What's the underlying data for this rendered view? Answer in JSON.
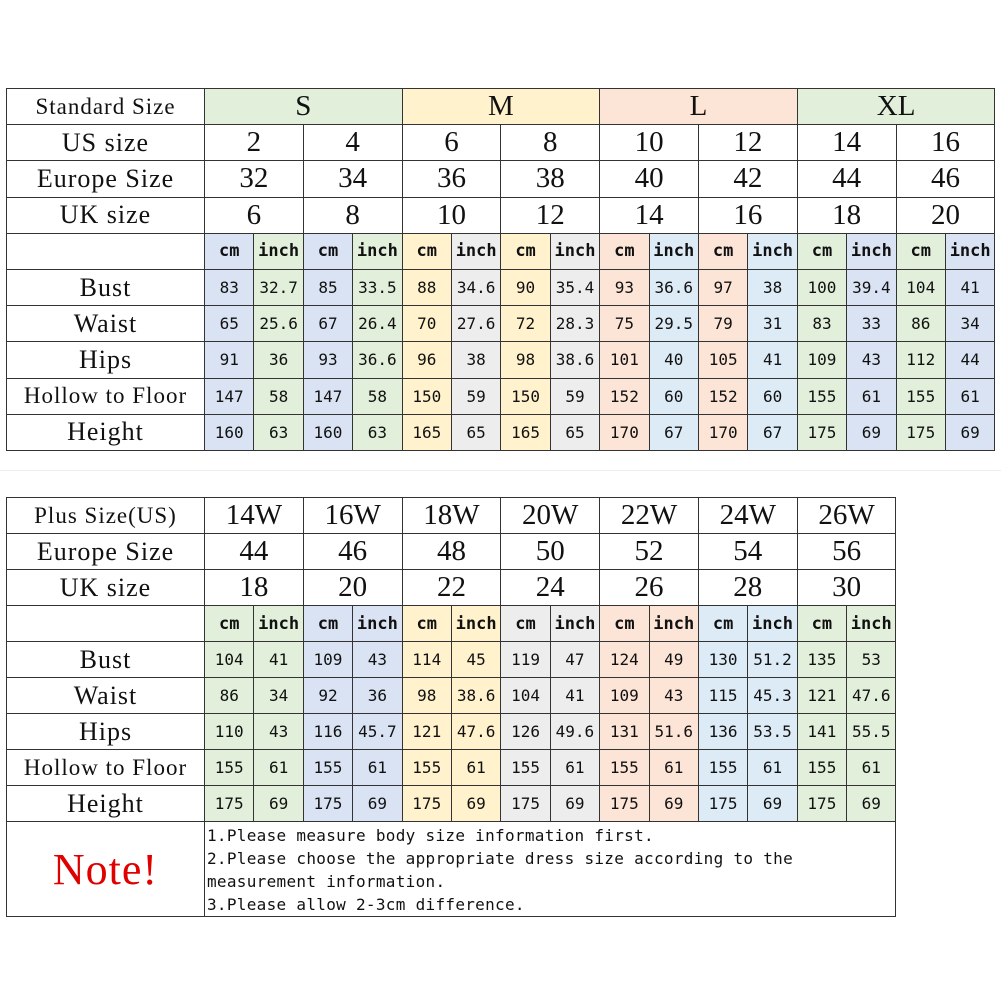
{
  "colors": {
    "green": "#e2efda",
    "blue": "#dae3f3",
    "yellow": "#fff2cc",
    "gray": "#ededed",
    "peach": "#fce4d6",
    "lightblue": "#ddebf7",
    "note_red": "#e00000"
  },
  "standard": {
    "header_label": "Standard Size",
    "groups": [
      {
        "label": "S",
        "color": "green",
        "cm_color": "blue",
        "inch_color": "green"
      },
      {
        "label": "M",
        "color": "yellow",
        "cm_color": "yellow",
        "inch_color": "gray"
      },
      {
        "label": "L",
        "color": "peach",
        "cm_color": "peach",
        "inch_color": "lightblue"
      },
      {
        "label": "XL",
        "color": "green",
        "cm_color": "green",
        "inch_color": "blue"
      }
    ],
    "size_rows": [
      {
        "label": "US size",
        "values": [
          "2",
          "4",
          "6",
          "8",
          "10",
          "12",
          "14",
          "16"
        ]
      },
      {
        "label": "Europe Size",
        "values": [
          "32",
          "34",
          "36",
          "38",
          "40",
          "42",
          "44",
          "46"
        ]
      },
      {
        "label": "UK size",
        "values": [
          "6",
          "8",
          "10",
          "12",
          "14",
          "16",
          "18",
          "20"
        ]
      }
    ],
    "unit_labels": {
      "cm": "cm",
      "inch": "inch"
    },
    "measure_rows": [
      {
        "label": "Bust",
        "values": [
          "83",
          "32.7",
          "85",
          "33.5",
          "88",
          "34.6",
          "90",
          "35.4",
          "93",
          "36.6",
          "97",
          "38",
          "100",
          "39.4",
          "104",
          "41"
        ]
      },
      {
        "label": "Waist",
        "values": [
          "65",
          "25.6",
          "67",
          "26.4",
          "70",
          "27.6",
          "72",
          "28.3",
          "75",
          "29.5",
          "79",
          "31",
          "83",
          "33",
          "86",
          "34"
        ]
      },
      {
        "label": "Hips",
        "values": [
          "91",
          "36",
          "93",
          "36.6",
          "96",
          "38",
          "98",
          "38.6",
          "101",
          "40",
          "105",
          "41",
          "109",
          "43",
          "112",
          "44"
        ]
      },
      {
        "label": "Hollow to Floor",
        "values": [
          "147",
          "58",
          "147",
          "58",
          "150",
          "59",
          "150",
          "59",
          "152",
          "60",
          "152",
          "60",
          "155",
          "61",
          "155",
          "61"
        ]
      },
      {
        "label": "Height",
        "values": [
          "160",
          "63",
          "160",
          "63",
          "165",
          "65",
          "165",
          "65",
          "170",
          "67",
          "170",
          "67",
          "175",
          "69",
          "175",
          "69"
        ]
      }
    ]
  },
  "plus": {
    "size_rows": [
      {
        "label": "Plus Size(US)",
        "values": [
          "14W",
          "16W",
          "18W",
          "20W",
          "22W",
          "24W",
          "26W"
        ]
      },
      {
        "label": "Europe Size",
        "values": [
          "44",
          "46",
          "48",
          "50",
          "52",
          "54",
          "56"
        ]
      },
      {
        "label": "UK size",
        "values": [
          "18",
          "20",
          "22",
          "24",
          "26",
          "28",
          "30"
        ]
      }
    ],
    "column_colors": [
      "green",
      "blue",
      "yellow",
      "gray",
      "peach",
      "lightblue",
      "green"
    ],
    "unit_labels": {
      "cm": "cm",
      "inch": "inch"
    },
    "measure_rows": [
      {
        "label": "Bust",
        "values": [
          "104",
          "41",
          "109",
          "43",
          "114",
          "45",
          "119",
          "47",
          "124",
          "49",
          "130",
          "51.2",
          "135",
          "53"
        ]
      },
      {
        "label": "Waist",
        "values": [
          "86",
          "34",
          "92",
          "36",
          "98",
          "38.6",
          "104",
          "41",
          "109",
          "43",
          "115",
          "45.3",
          "121",
          "47.6"
        ]
      },
      {
        "label": "Hips",
        "values": [
          "110",
          "43",
          "116",
          "45.7",
          "121",
          "47.6",
          "126",
          "49.6",
          "131",
          "51.6",
          "136",
          "53.5",
          "141",
          "55.5"
        ]
      },
      {
        "label": "Hollow to Floor",
        "values": [
          "155",
          "61",
          "155",
          "61",
          "155",
          "61",
          "155",
          "61",
          "155",
          "61",
          "155",
          "61",
          "155",
          "61"
        ]
      },
      {
        "label": "Height",
        "values": [
          "175",
          "69",
          "175",
          "69",
          "175",
          "69",
          "175",
          "69",
          "175",
          "69",
          "175",
          "69",
          "175",
          "69"
        ]
      }
    ],
    "note": {
      "title": "Note!",
      "lines": [
        "1.Please measure body size information first.",
        "2.Please choose the appropriate dress size according to the measurement information.",
        "3.Please allow 2-3cm difference."
      ]
    }
  }
}
